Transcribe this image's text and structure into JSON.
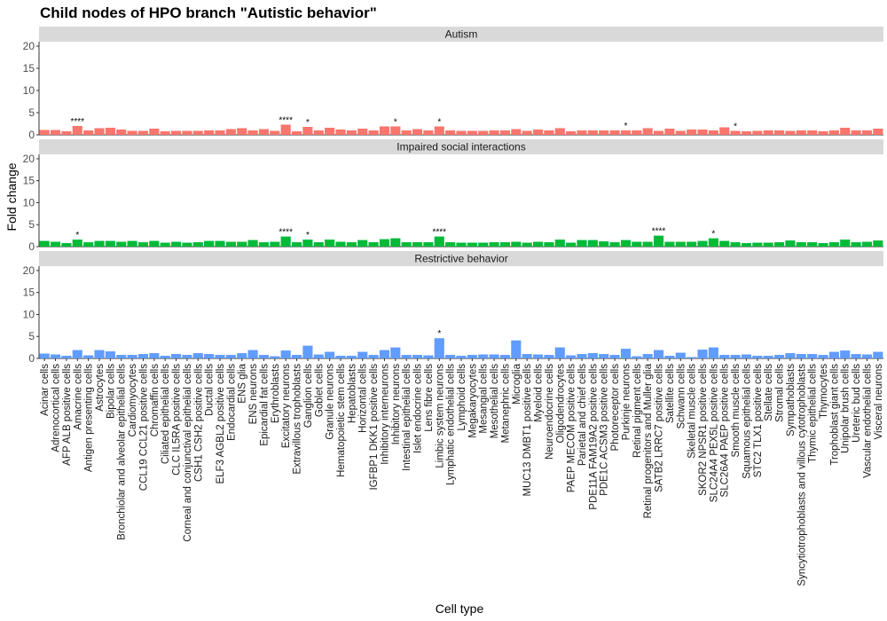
{
  "chart_data": {
    "type": "bar",
    "title": "Child nodes of HPO branch \"Autistic behavior\"",
    "xlabel": "Cell type",
    "ylabel": "Fold change",
    "ylim": [
      0,
      21
    ],
    "yticks": [
      0,
      5,
      10,
      15,
      20
    ],
    "grid": false,
    "categories": [
      "Acinar cells",
      "Adrenocortical cells",
      "AFP ALB positive cells",
      "Amacrine cells",
      "Antigen presenting cells",
      "Astrocytes",
      "Bipolar cells",
      "Bronchiolar and alveolar epithelial cells",
      "Cardiomyocytes",
      "CCL19 CCL21 positive cells",
      "Chromaffin cells",
      "Ciliated epithelial cells",
      "CLC IL5RA positive cells",
      "Corneal and conjunctival epithelial cells",
      "CSH1 CSH2 positive cells",
      "Ductal cells",
      "ELF3 AGBL2 positive cells",
      "Endocardial cells",
      "ENS glia",
      "ENS neurons",
      "Epicardial fat cells",
      "Erythroblasts",
      "Excitatory neurons",
      "Extravillous trophoblasts",
      "Ganglion cells",
      "Goblet cells",
      "Granule neurons",
      "Hematopoietic stem cells",
      "Hepatoblasts",
      "Horizontal cells",
      "IGFBP1 DKK1 positive cells",
      "Inhibitory interneurons",
      "Inhibitory neurons",
      "Intestinal epithelial cells",
      "Islet endocrine cells",
      "Lens fibre cells",
      "Limbic system neurons",
      "Lymphatic endothelial cells",
      "Lymphoid cells",
      "Megakaryocytes",
      "Mesangial cells",
      "Mesothelial cells",
      "Metanephric cells",
      "Microglia",
      "MUC13 DMBT1 positive cells",
      "Myeloid cells",
      "Neuroendocrine cells",
      "Oligodendrocytes",
      "PAEP MECOM positive cells",
      "Parietal and chief cells",
      "PDE11A FAM19A2 positive cells",
      "PDE1C ACSM3 positive cells",
      "Photoreceptor cells",
      "Purkinje neurons",
      "Retinal pigment cells",
      "Retinal progenitors and Muller glia",
      "SATB2 LRRC7 positive cells",
      "Satellite cells",
      "Schwann cells",
      "Skeletal muscle cells",
      "SKOR2 NPSR1 positive cells",
      "SLC24A4 PEX5L positive cells",
      "SLC26A4 PAEP positive cells",
      "Smooth muscle cells",
      "Squamous epithelial cells",
      "STC2 TLX1 positive cells",
      "Stellate cells",
      "Stromal cells",
      "Sympathoblasts",
      "Syncytiotrophoblasts and villous cytotrophoblasts",
      "Thymic epithelial cells",
      "Thymocytes",
      "Trophoblast giant cells",
      "Unipolar brush cells",
      "Ureteric bud cells",
      "Vascular endothelial cells",
      "Visceral neurons"
    ],
    "series": [
      {
        "name": "Autism",
        "color": "#F8766D",
        "values": [
          1.1,
          1.1,
          0.8,
          2.0,
          1.0,
          1.5,
          1.6,
          1.2,
          0.9,
          0.9,
          1.4,
          0.8,
          0.9,
          0.9,
          0.9,
          1.0,
          1.0,
          1.3,
          1.5,
          1.0,
          1.3,
          0.9,
          2.3,
          0.8,
          1.8,
          1.0,
          1.6,
          1.2,
          1.0,
          1.4,
          1.0,
          1.9,
          1.9,
          1.0,
          1.3,
          1.0,
          1.9,
          1.0,
          0.9,
          0.9,
          0.9,
          1.0,
          1.0,
          1.3,
          0.9,
          1.2,
          1.0,
          1.5,
          0.8,
          1.0,
          1.0,
          1.0,
          1.0,
          1.0,
          1.0,
          1.5,
          0.9,
          1.4,
          0.9,
          1.2,
          1.2,
          1.0,
          1.7,
          0.9,
          0.8,
          0.9,
          1.0,
          1.0,
          0.9,
          1.0,
          1.0,
          0.8,
          1.0,
          1.6,
          1.0,
          1.0,
          1.4
        ],
        "significance": [
          "",
          "",
          "",
          "****",
          "",
          "",
          "",
          "",
          "",
          "",
          "",
          "",
          "",
          "",
          "",
          "",
          "",
          "",
          "",
          "",
          "",
          "",
          "****",
          "",
          "*",
          "",
          "",
          "",
          "",
          "",
          "",
          "",
          "*",
          "",
          "",
          "",
          "*",
          "",
          "",
          "",
          "",
          "",
          "",
          "",
          "",
          "",
          "",
          "",
          "",
          "",
          "",
          "",
          "",
          "*",
          "",
          "",
          "",
          "",
          "",
          "",
          "",
          "",
          "",
          "*",
          "",
          "",
          "",
          "",
          "",
          "",
          "",
          "",
          "",
          "",
          "",
          "",
          "",
          "",
          ""
        ]
      },
      {
        "name": "Impaired social interactions",
        "color": "#00BA38",
        "values": [
          1.3,
          1.1,
          0.8,
          1.6,
          1.0,
          1.3,
          1.3,
          1.1,
          1.3,
          1.0,
          1.3,
          0.9,
          1.1,
          0.9,
          1.0,
          1.3,
          1.3,
          1.1,
          1.1,
          1.5,
          1.0,
          1.1,
          2.3,
          1.0,
          1.6,
          1.0,
          1.6,
          1.1,
          1.0,
          1.5,
          1.0,
          1.7,
          1.9,
          1.0,
          1.0,
          1.0,
          2.3,
          1.0,
          0.9,
          0.9,
          0.9,
          1.0,
          1.0,
          1.1,
          0.9,
          1.1,
          1.0,
          1.6,
          0.9,
          1.5,
          1.5,
          1.2,
          1.0,
          1.5,
          1.1,
          1.1,
          2.5,
          1.1,
          1.1,
          1.1,
          1.3,
          1.9,
          1.3,
          1.0,
          0.8,
          0.9,
          0.9,
          1.0,
          1.4,
          1.0,
          1.0,
          0.8,
          1.0,
          1.6,
          1.0,
          1.1,
          1.4
        ],
        "significance": [
          "",
          "",
          "",
          "*",
          "",
          "",
          "",
          "",
          "",
          "",
          "",
          "",
          "",
          "",
          "",
          "",
          "",
          "",
          "",
          "",
          "",
          "",
          "****",
          "",
          "*",
          "",
          "",
          "",
          "",
          "",
          "",
          "",
          "",
          "",
          "",
          "",
          "****",
          "",
          "",
          "",
          "",
          "",
          "",
          "",
          "",
          "",
          "",
          "",
          "",
          "",
          "",
          "",
          "",
          "",
          "",
          "",
          "****",
          "",
          "",
          "",
          "",
          "*",
          "",
          "",
          "",
          "",
          "",
          "",
          "",
          "",
          "",
          "",
          "",
          "",
          "",
          ""
        ]
      },
      {
        "name": "Restrictive behavior",
        "color": "#619CFF",
        "values": [
          1.1,
          0.9,
          0.6,
          1.9,
          0.7,
          1.9,
          1.6,
          0.8,
          0.8,
          1.0,
          1.2,
          0.6,
          1.0,
          0.8,
          1.2,
          1.0,
          0.8,
          0.8,
          1.2,
          1.9,
          0.8,
          0.5,
          1.8,
          0.8,
          2.9,
          0.9,
          1.5,
          0.6,
          0.6,
          1.5,
          0.8,
          1.9,
          2.5,
          0.8,
          0.8,
          0.7,
          4.6,
          0.8,
          0.6,
          0.8,
          0.9,
          0.9,
          0.8,
          4.1,
          1.0,
          0.9,
          0.8,
          2.5,
          0.7,
          1.0,
          1.2,
          1.0,
          0.8,
          2.2,
          0.5,
          1.0,
          1.9,
          0.6,
          1.3,
          0.3,
          2.0,
          2.5,
          0.8,
          0.8,
          0.9,
          0.6,
          0.6,
          0.8,
          1.2,
          1.0,
          1.0,
          0.8,
          1.5,
          1.8,
          1.0,
          0.9,
          1.5
        ],
        "significance": [
          "",
          "",
          "",
          "",
          "",
          "",
          "",
          "",
          "",
          "",
          "",
          "",
          "",
          "",
          "",
          "",
          "",
          "",
          "",
          "",
          "",
          "",
          "",
          "",
          "",
          "",
          "",
          "",
          "",
          "",
          "",
          "",
          "",
          "",
          "",
          "",
          "*",
          "",
          "",
          "",
          "",
          "",
          "",
          "",
          "",
          "",
          "",
          "",
          "",
          "",
          "",
          "",
          "",
          "",
          "",
          "",
          "",
          "",
          "",
          "",
          "",
          "",
          "",
          "",
          "",
          "",
          "",
          "",
          "",
          "",
          "",
          "",
          "",
          "",
          "",
          "",
          ""
        ]
      }
    ]
  }
}
